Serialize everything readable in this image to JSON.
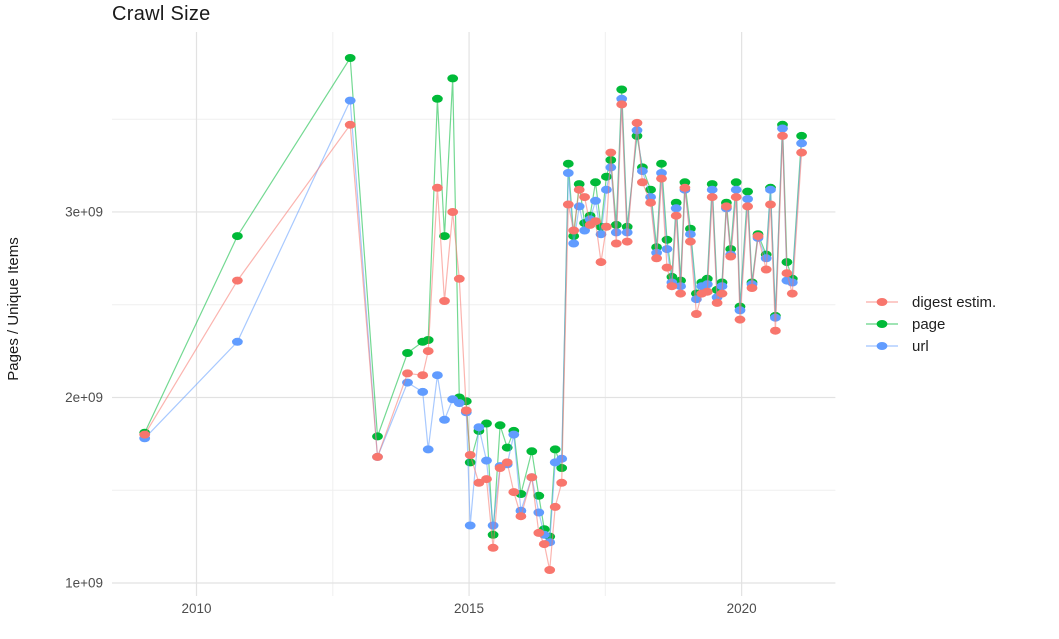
{
  "title": "Crawl Size",
  "chart_data": {
    "type": "line",
    "title": "Crawl Size",
    "xlabel": "",
    "ylabel": "Pages / Unique Items",
    "grid": true,
    "legend_position": "right",
    "xlim": [
      2008.45,
      2021.72
    ],
    "ylim": [
      930000000.0,
      3970000000.0
    ],
    "x_ticks": [
      {
        "v": 2010,
        "label": "2010"
      },
      {
        "v": 2015,
        "label": "2015"
      },
      {
        "v": 2020,
        "label": "2020"
      }
    ],
    "x_minor": [
      2012.5,
      2017.5
    ],
    "y_ticks": [
      {
        "v": 1000000000.0,
        "label": "1e+09"
      },
      {
        "v": 2000000000.0,
        "label": "2e+09"
      },
      {
        "v": 3000000000.0,
        "label": "3e+09"
      }
    ],
    "y_minor": [
      1500000000.0,
      2500000000.0,
      3500000000.0
    ],
    "x": [
      2009.05,
      2010.75,
      2012.82,
      2013.32,
      2013.87,
      2014.15,
      2014.25,
      2014.42,
      2014.55,
      2014.7,
      2014.82,
      2014.95,
      2015.02,
      2015.18,
      2015.32,
      2015.44,
      2015.57,
      2015.7,
      2015.82,
      2015.95,
      2016.15,
      2016.28,
      2016.38,
      2016.48,
      2016.58,
      2016.7,
      2016.82,
      2016.92,
      2017.02,
      2017.12,
      2017.22,
      2017.32,
      2017.42,
      2017.52,
      2017.6,
      2017.7,
      2017.8,
      2017.9,
      2018.08,
      2018.18,
      2018.33,
      2018.44,
      2018.53,
      2018.63,
      2018.72,
      2018.8,
      2018.88,
      2018.96,
      2019.06,
      2019.17,
      2019.27,
      2019.37,
      2019.46,
      2019.55,
      2019.64,
      2019.72,
      2019.8,
      2019.9,
      2019.97,
      2020.11,
      2020.19,
      2020.3,
      2020.45,
      2020.53,
      2020.62,
      2020.75,
      2020.83,
      2020.93,
      2021.1
    ],
    "series": [
      {
        "name": "digest estim.",
        "color": "#F8766D",
        "values": [
          1800000000.0,
          2630000000.0,
          3470000000.0,
          1680000000.0,
          2130000000.0,
          2120000000.0,
          2250000000.0,
          3130000000.0,
          2520000000.0,
          3000000000.0,
          2640000000.0,
          1930000000.0,
          1690000000.0,
          1540000000.0,
          1560000000.0,
          1190000000.0,
          1620000000.0,
          1650000000.0,
          1490000000.0,
          1360000000.0,
          1570000000.0,
          1270000000.0,
          1210000000.0,
          1070000000.0,
          1410000000.0,
          1540000000.0,
          3040000000.0,
          2900000000.0,
          3120000000.0,
          3080000000.0,
          2930000000.0,
          2950000000.0,
          2730000000.0,
          2920000000.0,
          3320000000.0,
          2830000000.0,
          3580000000.0,
          2840000000.0,
          3480000000.0,
          3160000000.0,
          3050000000.0,
          2750000000.0,
          3180000000.0,
          2700000000.0,
          2600000000.0,
          2980000000.0,
          2560000000.0,
          3130000000.0,
          2840000000.0,
          2450000000.0,
          2560000000.0,
          2570000000.0,
          3080000000.0,
          2510000000.0,
          2560000000.0,
          3030000000.0,
          2760000000.0,
          3080000000.0,
          2420000000.0,
          3030000000.0,
          2590000000.0,
          2870000000.0,
          2690000000.0,
          3040000000.0,
          2360000000.0,
          3410000000.0,
          2670000000.0,
          2560000000.0,
          3320000000.0
        ]
      },
      {
        "name": "page",
        "color": "#00BA38",
        "values": [
          1810000000.0,
          2870000000.0,
          3830000000.0,
          1790000000.0,
          2240000000.0,
          2300000000.0,
          2310000000.0,
          3610000000.0,
          2870000000.0,
          3720000000.0,
          2000000000.0,
          1980000000.0,
          1650000000.0,
          1820000000.0,
          1860000000.0,
          1260000000.0,
          1850000000.0,
          1730000000.0,
          1820000000.0,
          1480000000.0,
          1710000000.0,
          1470000000.0,
          1290000000.0,
          1250000000.0,
          1720000000.0,
          1620000000.0,
          3260000000.0,
          2870000000.0,
          3150000000.0,
          2940000000.0,
          2980000000.0,
          3160000000.0,
          2920000000.0,
          3190000000.0,
          3280000000.0,
          2930000000.0,
          3660000000.0,
          2920000000.0,
          3410000000.0,
          3240000000.0,
          3120000000.0,
          2810000000.0,
          3260000000.0,
          2850000000.0,
          2650000000.0,
          3050000000.0,
          2630000000.0,
          3160000000.0,
          2910000000.0,
          2560000000.0,
          2620000000.0,
          2640000000.0,
          3150000000.0,
          2580000000.0,
          2620000000.0,
          3050000000.0,
          2800000000.0,
          3160000000.0,
          2490000000.0,
          3110000000.0,
          2620000000.0,
          2880000000.0,
          2770000000.0,
          3130000000.0,
          2440000000.0,
          3470000000.0,
          2730000000.0,
          2640000000.0,
          3410000000.0
        ]
      },
      {
        "name": "url",
        "color": "#619CFF",
        "values": [
          1780000000.0,
          2300000000.0,
          3600000000.0,
          1680000000.0,
          2080000000.0,
          2030000000.0,
          1720000000.0,
          2120000000.0,
          1880000000.0,
          1990000000.0,
          1970000000.0,
          1920000000.0,
          1310000000.0,
          1840000000.0,
          1660000000.0,
          1310000000.0,
          1630000000.0,
          1640000000.0,
          1800000000.0,
          1390000000.0,
          1570000000.0,
          1380000000.0,
          1260000000.0,
          1220000000.0,
          1650000000.0,
          1670000000.0,
          3210000000.0,
          2830000000.0,
          3030000000.0,
          2900000000.0,
          2960000000.0,
          3060000000.0,
          2880000000.0,
          3120000000.0,
          3240000000.0,
          2890000000.0,
          3610000000.0,
          2890000000.0,
          3440000000.0,
          3220000000.0,
          3080000000.0,
          2780000000.0,
          3210000000.0,
          2800000000.0,
          2620000000.0,
          3020000000.0,
          2600000000.0,
          3120000000.0,
          2880000000.0,
          2530000000.0,
          2600000000.0,
          2610000000.0,
          3120000000.0,
          2540000000.0,
          2600000000.0,
          3020000000.0,
          2770000000.0,
          3120000000.0,
          2470000000.0,
          3070000000.0,
          2610000000.0,
          2860000000.0,
          2750000000.0,
          3120000000.0,
          2430000000.0,
          3450000000.0,
          2630000000.0,
          2620000000.0,
          3370000000.0
        ]
      }
    ]
  },
  "style": {
    "grid_major_color": "#e2e2e2",
    "grid_minor_color": "#efefef",
    "tick_label_color": "#4d4d4d"
  }
}
